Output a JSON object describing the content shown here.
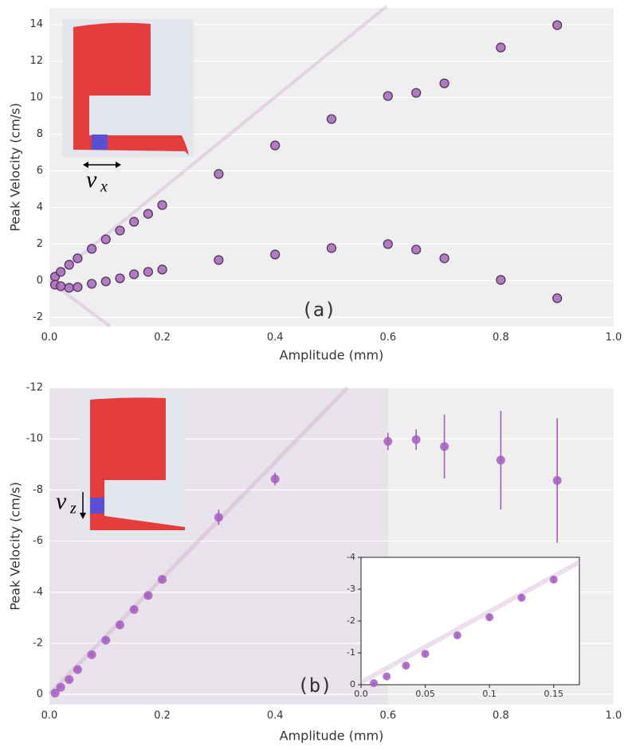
{
  "chart_data": [
    {
      "type": "scatter",
      "xlabel": "Amplitude (mm)",
      "ylabel": "Peak Velocity (cm/s)",
      "annotation": "(a)",
      "inset_label": {
        "main": "v",
        "sub": "x"
      },
      "x": [
        0.01,
        0.02,
        0.035,
        0.05,
        0.075,
        0.1,
        0.125,
        0.15,
        0.175,
        0.2,
        0.3,
        0.4,
        0.5,
        0.6,
        0.65,
        0.7,
        0.8,
        0.9
      ],
      "series": [
        {
          "color": "#a466b9",
          "edgecolor": "#4b2d55",
          "values": [
            0.22,
            0.48,
            0.87,
            1.22,
            1.74,
            2.26,
            2.74,
            3.22,
            3.65,
            4.13,
            5.83,
            7.39,
            8.83,
            10.09,
            10.26,
            10.78,
            12.74,
            13.96
          ]
        },
        {
          "color": "#a466b9",
          "edgecolor": "#4b2d55",
          "values": [
            -0.22,
            -0.3,
            -0.39,
            -0.35,
            -0.17,
            -0.04,
            0.13,
            0.35,
            0.48,
            0.61,
            1.13,
            1.43,
            1.78,
            2.0,
            1.7,
            1.22,
            0.04,
            -0.96
          ]
        }
      ],
      "xlim": [
        0,
        1
      ],
      "ylim": [
        -2.5,
        14.9
      ],
      "xticks": [
        {
          "value": 0,
          "label": "0.0"
        },
        0.2,
        0.4,
        0.6,
        0.8,
        {
          "value": 1,
          "label": "1.0"
        }
      ],
      "yticks": [
        -2,
        0,
        2,
        4,
        6,
        8,
        10,
        12,
        14
      ],
      "grid": true
    },
    {
      "type": "scatter",
      "xlabel": "Amplitude (mm)",
      "ylabel": "Peak Velocity (cm/s)",
      "annotation": "(b)",
      "inset_label": {
        "main": "v",
        "sub": "z"
      },
      "shaded_region": [
        0,
        0.6
      ],
      "x": [
        0.01,
        0.02,
        0.035,
        0.05,
        0.075,
        0.1,
        0.125,
        0.15,
        0.175,
        0.2,
        0.3,
        0.4,
        0.6,
        0.65,
        0.7,
        0.8,
        0.9
      ],
      "series": [
        {
          "color": "#a55cbf",
          "values": [
            -0.05,
            -0.28,
            -0.58,
            -0.97,
            -1.55,
            -2.12,
            -2.72,
            -3.32,
            -3.87,
            -4.5,
            -6.93,
            -8.43,
            -9.9,
            -9.97,
            -9.7,
            -9.17,
            -8.37
          ],
          "errors": [
            0.05,
            0.06,
            0.06,
            0.07,
            0.07,
            0.08,
            0.08,
            0.1,
            0.1,
            0.12,
            0.3,
            0.25,
            0.34,
            0.4,
            1.25,
            1.93,
            2.43
          ]
        }
      ],
      "xlim": [
        0,
        1
      ],
      "ylim": [
        0.4,
        -12
      ],
      "xticks": [
        {
          "value": 0,
          "label": "0.0"
        },
        0.2,
        0.4,
        0.6,
        0.8,
        {
          "value": 1,
          "label": "1.0"
        }
      ],
      "yticks": [
        0,
        -2,
        -4,
        -6,
        -8,
        -10,
        -12
      ],
      "grid": true
    },
    {
      "type": "scatter",
      "x": [
        0.01,
        0.02,
        0.035,
        0.05,
        0.075,
        0.1,
        0.125,
        0.15
      ],
      "series": [
        {
          "color": "#a55cbf",
          "values": [
            -0.05,
            -0.26,
            -0.6,
            -0.97,
            -1.55,
            -2.12,
            -2.73,
            -3.3
          ],
          "errors": [
            0.04,
            0.05,
            0.06,
            0.07,
            0.07,
            0.08,
            0.1,
            0.1
          ]
        }
      ],
      "xlim": [
        0,
        0.17
      ],
      "ylim": [
        0,
        -4
      ],
      "xticks": [
        {
          "value": 0,
          "label": "0.0"
        },
        0.05,
        0.1,
        0.15
      ],
      "yticks": [
        0,
        -1,
        -2,
        -3,
        -4
      ],
      "grid": false,
      "frame": true
    }
  ]
}
